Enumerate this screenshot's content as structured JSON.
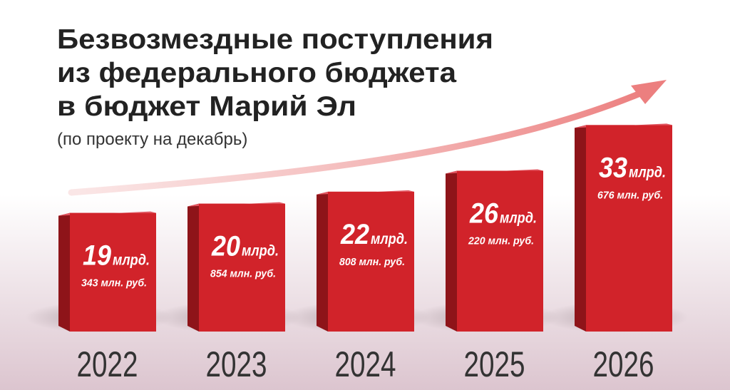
{
  "chart_data": {
    "type": "bar3d",
    "title": [
      "Безвозмездные поступления",
      "из федерального бюджета",
      "в бюджет Марий Эл"
    ],
    "subtitle": "(по проекту на декабрь)",
    "categories": [
      "2022",
      "2023",
      "2024",
      "2025",
      "2026"
    ],
    "values": [
      19.343,
      20.854,
      22.808,
      26.22,
      33.676
    ],
    "value_labels": [
      [
        "19",
        "млрд.",
        "343 млн. руб."
      ],
      [
        "20",
        "млрд.",
        "854 млн. руб."
      ],
      [
        "22",
        "млрд.",
        "808 млн. руб."
      ],
      [
        "26",
        "млрд.",
        "220 млн. руб."
      ],
      [
        "33",
        "млрд.",
        "676 млн. руб."
      ]
    ],
    "color": "#d1232a"
  }
}
